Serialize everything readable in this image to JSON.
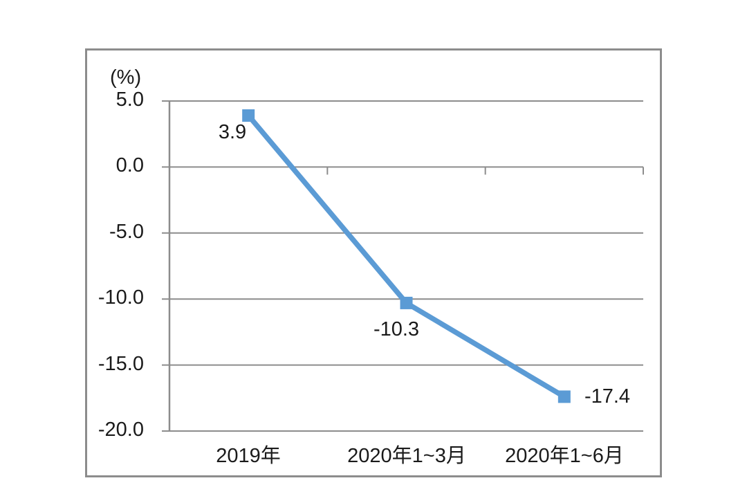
{
  "chart_data": {
    "type": "line",
    "categories": [
      "2019年",
      "2020年1~3月",
      "2020年1~6月"
    ],
    "values": [
      3.9,
      -10.3,
      -17.4
    ],
    "data_labels": [
      "3.9",
      "-10.3",
      "-17.4"
    ],
    "title": "",
    "xlabel": "",
    "ylabel": "(%)",
    "ylim": [
      -20,
      5
    ],
    "y_tick_step": 5,
    "y_tick_labels": [
      "5.0",
      "0.0",
      "-5.0",
      "-10.0",
      "-15.0",
      "-20.0"
    ],
    "grid": true,
    "legend": "none",
    "marker": "square",
    "series": [
      {
        "name": "",
        "values": [
          3.9,
          -10.3,
          -17.4
        ]
      }
    ]
  },
  "colors": {
    "line": "#5b9bd5",
    "marker": "#5b9bd5",
    "grid": "#8c8c8c",
    "axis": "#8c8c8c",
    "frame_border": "#8c8c8c",
    "text": "#1a1a1a",
    "background": "#ffffff"
  }
}
